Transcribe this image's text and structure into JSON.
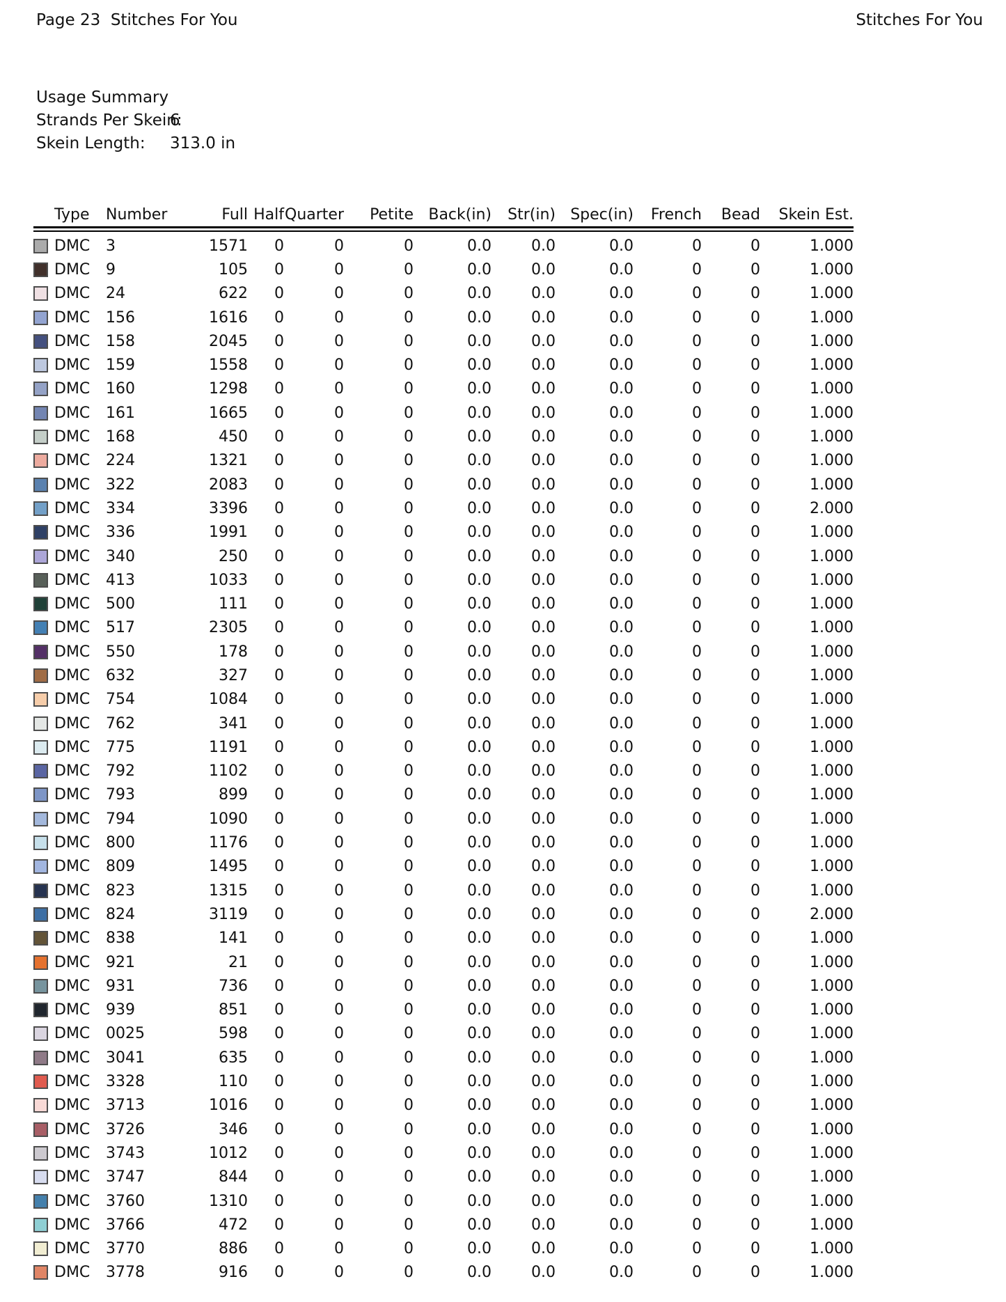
{
  "page_header": {
    "left": "Page 23  Stitches For You",
    "right": "Stitches For You"
  },
  "usage_summary": {
    "title": "Usage Summary",
    "strands_label": "Strands Per Skein:",
    "strands_value": "6",
    "length_label": "Skein Length:",
    "length_value": "313.0 in"
  },
  "table": {
    "columns": [
      "Type",
      "Number",
      "Full",
      "Half",
      "Quarter",
      "Petite",
      "Back(in)",
      "Str(in)",
      "Spec(in)",
      "French",
      "Bead",
      "Skein Est."
    ],
    "rows": [
      {
        "swatch": "#ABABAB",
        "type": "DMC",
        "number": "3",
        "full": "1571",
        "half": "0",
        "quarter": "0",
        "petite": "0",
        "back": "0.0",
        "str": "0.0",
        "spec": "0.0",
        "french": "0",
        "bead": "0",
        "skein": "1.000"
      },
      {
        "swatch": "#41302B",
        "type": "DMC",
        "number": "9",
        "full": "105",
        "half": "0",
        "quarter": "0",
        "petite": "0",
        "back": "0.0",
        "str": "0.0",
        "spec": "0.0",
        "french": "0",
        "bead": "0",
        "skein": "1.000"
      },
      {
        "swatch": "#EFE0E3",
        "type": "DMC",
        "number": "24",
        "full": "622",
        "half": "0",
        "quarter": "0",
        "petite": "0",
        "back": "0.0",
        "str": "0.0",
        "spec": "0.0",
        "french": "0",
        "bead": "0",
        "skein": "1.000"
      },
      {
        "swatch": "#93A4D1",
        "type": "DMC",
        "number": "156",
        "full": "1616",
        "half": "0",
        "quarter": "0",
        "petite": "0",
        "back": "0.0",
        "str": "0.0",
        "spec": "0.0",
        "french": "0",
        "bead": "0",
        "skein": "1.000"
      },
      {
        "swatch": "#44507F",
        "type": "DMC",
        "number": "158",
        "full": "2045",
        "half": "0",
        "quarter": "0",
        "petite": "0",
        "back": "0.0",
        "str": "0.0",
        "spec": "0.0",
        "french": "0",
        "bead": "0",
        "skein": "1.000"
      },
      {
        "swatch": "#BDC8DF",
        "type": "DMC",
        "number": "159",
        "full": "1558",
        "half": "0",
        "quarter": "0",
        "petite": "0",
        "back": "0.0",
        "str": "0.0",
        "spec": "0.0",
        "french": "0",
        "bead": "0",
        "skein": "1.000"
      },
      {
        "swatch": "#94A2C6",
        "type": "DMC",
        "number": "160",
        "full": "1298",
        "half": "0",
        "quarter": "0",
        "petite": "0",
        "back": "0.0",
        "str": "0.0",
        "spec": "0.0",
        "french": "0",
        "bead": "0",
        "skein": "1.000"
      },
      {
        "swatch": "#7385B2",
        "type": "DMC",
        "number": "161",
        "full": "1665",
        "half": "0",
        "quarter": "0",
        "petite": "0",
        "back": "0.0",
        "str": "0.0",
        "spec": "0.0",
        "french": "0",
        "bead": "0",
        "skein": "1.000"
      },
      {
        "swatch": "#C4CEC8",
        "type": "DMC",
        "number": "168",
        "full": "450",
        "half": "0",
        "quarter": "0",
        "petite": "0",
        "back": "0.0",
        "str": "0.0",
        "spec": "0.0",
        "french": "0",
        "bead": "0",
        "skein": "1.000"
      },
      {
        "swatch": "#EDAB9F",
        "type": "DMC",
        "number": "224",
        "full": "1321",
        "half": "0",
        "quarter": "0",
        "petite": "0",
        "back": "0.0",
        "str": "0.0",
        "spec": "0.0",
        "french": "0",
        "bead": "0",
        "skein": "1.000"
      },
      {
        "swatch": "#5A81AF",
        "type": "DMC",
        "number": "322",
        "full": "2083",
        "half": "0",
        "quarter": "0",
        "petite": "0",
        "back": "0.0",
        "str": "0.0",
        "spec": "0.0",
        "french": "0",
        "bead": "0",
        "skein": "1.000"
      },
      {
        "swatch": "#73A0C8",
        "type": "DMC",
        "number": "334",
        "full": "3396",
        "half": "0",
        "quarter": "0",
        "petite": "0",
        "back": "0.0",
        "str": "0.0",
        "spec": "0.0",
        "french": "0",
        "bead": "0",
        "skein": "2.000"
      },
      {
        "swatch": "#2E4065",
        "type": "DMC",
        "number": "336",
        "full": "1991",
        "half": "0",
        "quarter": "0",
        "petite": "0",
        "back": "0.0",
        "str": "0.0",
        "spec": "0.0",
        "french": "0",
        "bead": "0",
        "skein": "1.000"
      },
      {
        "swatch": "#ACA6D8",
        "type": "DMC",
        "number": "340",
        "full": "250",
        "half": "0",
        "quarter": "0",
        "petite": "0",
        "back": "0.0",
        "str": "0.0",
        "spec": "0.0",
        "french": "0",
        "bead": "0",
        "skein": "1.000"
      },
      {
        "swatch": "#586059",
        "type": "DMC",
        "number": "413",
        "full": "1033",
        "half": "0",
        "quarter": "0",
        "petite": "0",
        "back": "0.0",
        "str": "0.0",
        "spec": "0.0",
        "french": "0",
        "bead": "0",
        "skein": "1.000"
      },
      {
        "swatch": "#204138",
        "type": "DMC",
        "number": "500",
        "full": "111",
        "half": "0",
        "quarter": "0",
        "petite": "0",
        "back": "0.0",
        "str": "0.0",
        "spec": "0.0",
        "french": "0",
        "bead": "0",
        "skein": "1.000"
      },
      {
        "swatch": "#4380B4",
        "type": "DMC",
        "number": "517",
        "full": "2305",
        "half": "0",
        "quarter": "0",
        "petite": "0",
        "back": "0.0",
        "str": "0.0",
        "spec": "0.0",
        "french": "0",
        "bead": "0",
        "skein": "1.000"
      },
      {
        "swatch": "#543067",
        "type": "DMC",
        "number": "550",
        "full": "178",
        "half": "0",
        "quarter": "0",
        "petite": "0",
        "back": "0.0",
        "str": "0.0",
        "spec": "0.0",
        "french": "0",
        "bead": "0",
        "skein": "1.000"
      },
      {
        "swatch": "#A06C45",
        "type": "DMC",
        "number": "632",
        "full": "327",
        "half": "0",
        "quarter": "0",
        "petite": "0",
        "back": "0.0",
        "str": "0.0",
        "spec": "0.0",
        "french": "0",
        "bead": "0",
        "skein": "1.000"
      },
      {
        "swatch": "#F6CDAA",
        "type": "DMC",
        "number": "754",
        "full": "1084",
        "half": "0",
        "quarter": "0",
        "petite": "0",
        "back": "0.0",
        "str": "0.0",
        "spec": "0.0",
        "french": "0",
        "bead": "0",
        "skein": "1.000"
      },
      {
        "swatch": "#E4E7E5",
        "type": "DMC",
        "number": "762",
        "full": "341",
        "half": "0",
        "quarter": "0",
        "petite": "0",
        "back": "0.0",
        "str": "0.0",
        "spec": "0.0",
        "french": "0",
        "bead": "0",
        "skein": "1.000"
      },
      {
        "swatch": "#DBEAEF",
        "type": "DMC",
        "number": "775",
        "full": "1191",
        "half": "0",
        "quarter": "0",
        "petite": "0",
        "back": "0.0",
        "str": "0.0",
        "spec": "0.0",
        "french": "0",
        "bead": "0",
        "skein": "1.000"
      },
      {
        "swatch": "#5A65A3",
        "type": "DMC",
        "number": "792",
        "full": "1102",
        "half": "0",
        "quarter": "0",
        "petite": "0",
        "back": "0.0",
        "str": "0.0",
        "spec": "0.0",
        "french": "0",
        "bead": "0",
        "skein": "1.000"
      },
      {
        "swatch": "#7D95C6",
        "type": "DMC",
        "number": "793",
        "full": "899",
        "half": "0",
        "quarter": "0",
        "petite": "0",
        "back": "0.0",
        "str": "0.0",
        "spec": "0.0",
        "french": "0",
        "bead": "0",
        "skein": "1.000"
      },
      {
        "swatch": "#A3B8DC",
        "type": "DMC",
        "number": "794",
        "full": "1090",
        "half": "0",
        "quarter": "0",
        "petite": "0",
        "back": "0.0",
        "str": "0.0",
        "spec": "0.0",
        "french": "0",
        "bead": "0",
        "skein": "1.000"
      },
      {
        "swatch": "#C6DFEA",
        "type": "DMC",
        "number": "800",
        "full": "1176",
        "half": "0",
        "quarter": "0",
        "petite": "0",
        "back": "0.0",
        "str": "0.0",
        "spec": "0.0",
        "french": "0",
        "bead": "0",
        "skein": "1.000"
      },
      {
        "swatch": "#A2B6E0",
        "type": "DMC",
        "number": "809",
        "full": "1495",
        "half": "0",
        "quarter": "0",
        "petite": "0",
        "back": "0.0",
        "str": "0.0",
        "spec": "0.0",
        "french": "0",
        "bead": "0",
        "skein": "1.000"
      },
      {
        "swatch": "#263350",
        "type": "DMC",
        "number": "823",
        "full": "1315",
        "half": "0",
        "quarter": "0",
        "petite": "0",
        "back": "0.0",
        "str": "0.0",
        "spec": "0.0",
        "french": "0",
        "bead": "0",
        "skein": "1.000"
      },
      {
        "swatch": "#3E6FA4",
        "type": "DMC",
        "number": "824",
        "full": "3119",
        "half": "0",
        "quarter": "0",
        "petite": "0",
        "back": "0.0",
        "str": "0.0",
        "spec": "0.0",
        "french": "0",
        "bead": "0",
        "skein": "2.000"
      },
      {
        "swatch": "#635438",
        "type": "DMC",
        "number": "838",
        "full": "141",
        "half": "0",
        "quarter": "0",
        "petite": "0",
        "back": "0.0",
        "str": "0.0",
        "spec": "0.0",
        "french": "0",
        "bead": "0",
        "skein": "1.000"
      },
      {
        "swatch": "#E5722F",
        "type": "DMC",
        "number": "921",
        "full": "21",
        "half": "0",
        "quarter": "0",
        "petite": "0",
        "back": "0.0",
        "str": "0.0",
        "spec": "0.0",
        "french": "0",
        "bead": "0",
        "skein": "1.000"
      },
      {
        "swatch": "#77949E",
        "type": "DMC",
        "number": "931",
        "full": "736",
        "half": "0",
        "quarter": "0",
        "petite": "0",
        "back": "0.0",
        "str": "0.0",
        "spec": "0.0",
        "french": "0",
        "bead": "0",
        "skein": "1.000"
      },
      {
        "swatch": "#20262E",
        "type": "DMC",
        "number": "939",
        "full": "851",
        "half": "0",
        "quarter": "0",
        "petite": "0",
        "back": "0.0",
        "str": "0.0",
        "spec": "0.0",
        "french": "0",
        "bead": "0",
        "skein": "1.000"
      },
      {
        "swatch": "#DAD5E0",
        "type": "DMC",
        "number": "0025",
        "full": "598",
        "half": "0",
        "quarter": "0",
        "petite": "0",
        "back": "0.0",
        "str": "0.0",
        "spec": "0.0",
        "french": "0",
        "bead": "0",
        "skein": "1.000"
      },
      {
        "swatch": "#8F7A87",
        "type": "DMC",
        "number": "3041",
        "full": "635",
        "half": "0",
        "quarter": "0",
        "petite": "0",
        "back": "0.0",
        "str": "0.0",
        "spec": "0.0",
        "french": "0",
        "bead": "0",
        "skein": "1.000"
      },
      {
        "swatch": "#E05B4F",
        "type": "DMC",
        "number": "3328",
        "full": "110",
        "half": "0",
        "quarter": "0",
        "petite": "0",
        "back": "0.0",
        "str": "0.0",
        "spec": "0.0",
        "french": "0",
        "bead": "0",
        "skein": "1.000"
      },
      {
        "swatch": "#F8D9D6",
        "type": "DMC",
        "number": "3713",
        "full": "1016",
        "half": "0",
        "quarter": "0",
        "petite": "0",
        "back": "0.0",
        "str": "0.0",
        "spec": "0.0",
        "french": "0",
        "bead": "0",
        "skein": "1.000"
      },
      {
        "swatch": "#A85E66",
        "type": "DMC",
        "number": "3726",
        "full": "346",
        "half": "0",
        "quarter": "0",
        "petite": "0",
        "back": "0.0",
        "str": "0.0",
        "spec": "0.0",
        "french": "0",
        "bead": "0",
        "skein": "1.000"
      },
      {
        "swatch": "#CCC9CF",
        "type": "DMC",
        "number": "3743",
        "full": "1012",
        "half": "0",
        "quarter": "0",
        "petite": "0",
        "back": "0.0",
        "str": "0.0",
        "spec": "0.0",
        "french": "0",
        "bead": "0",
        "skein": "1.000"
      },
      {
        "swatch": "#D7DCEF",
        "type": "DMC",
        "number": "3747",
        "full": "844",
        "half": "0",
        "quarter": "0",
        "petite": "0",
        "back": "0.0",
        "str": "0.0",
        "spec": "0.0",
        "french": "0",
        "bead": "0",
        "skein": "1.000"
      },
      {
        "swatch": "#4480AC",
        "type": "DMC",
        "number": "3760",
        "full": "1310",
        "half": "0",
        "quarter": "0",
        "petite": "0",
        "back": "0.0",
        "str": "0.0",
        "spec": "0.0",
        "french": "0",
        "bead": "0",
        "skein": "1.000"
      },
      {
        "swatch": "#8FCFD4",
        "type": "DMC",
        "number": "3766",
        "full": "472",
        "half": "0",
        "quarter": "0",
        "petite": "0",
        "back": "0.0",
        "str": "0.0",
        "spec": "0.0",
        "french": "0",
        "bead": "0",
        "skein": "1.000"
      },
      {
        "swatch": "#F1EDD2",
        "type": "DMC",
        "number": "3770",
        "full": "886",
        "half": "0",
        "quarter": "0",
        "petite": "0",
        "back": "0.0",
        "str": "0.0",
        "spec": "0.0",
        "french": "0",
        "bead": "0",
        "skein": "1.000"
      },
      {
        "swatch": "#E08566",
        "type": "DMC",
        "number": "3778",
        "full": "916",
        "half": "0",
        "quarter": "0",
        "petite": "0",
        "back": "0.0",
        "str": "0.0",
        "spec": "0.0",
        "french": "0",
        "bead": "0",
        "skein": "1.000"
      }
    ]
  }
}
